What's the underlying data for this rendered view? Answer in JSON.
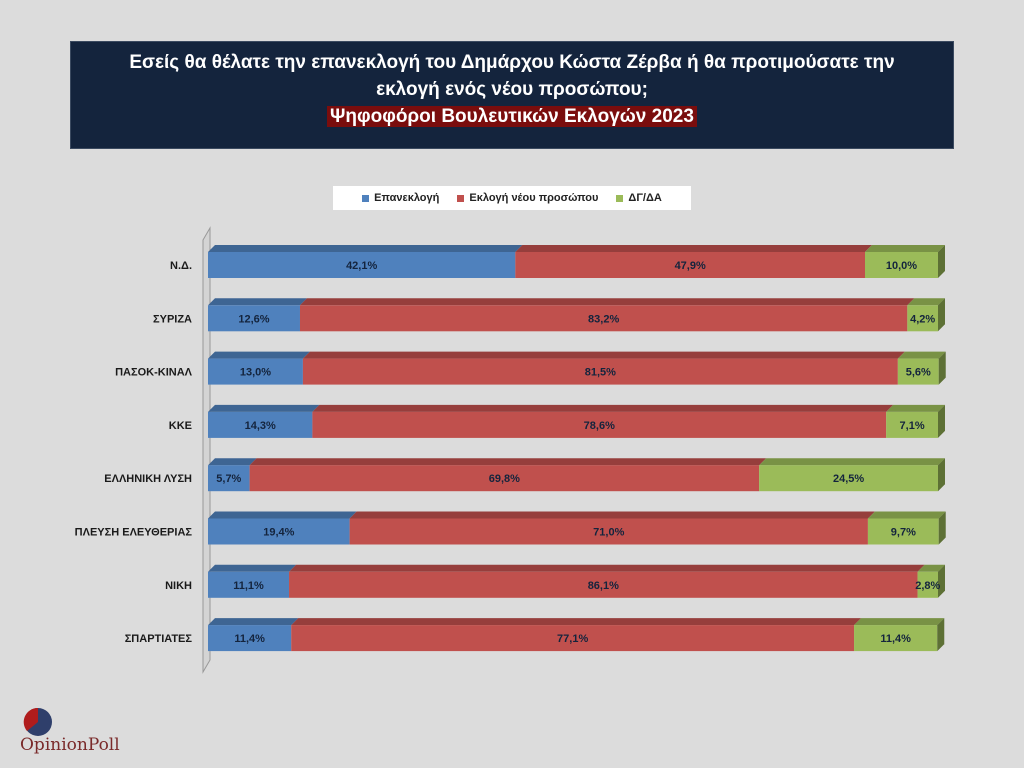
{
  "title": {
    "line1": "Εσείς θα θέλατε την επανεκλογή του Δημάρχου Κώστα Ζέρβα ή θα προτιμούσατε την",
    "line2": "εκλογή ενός νέου προσώπου;",
    "subtitle": "Ψηφοφόροι Βουλευτικών Εκλογών 2023"
  },
  "logo": {
    "text": "OpinionPoll"
  },
  "chart_data": {
    "type": "bar",
    "orientation": "horizontal-stacked-100",
    "categories": [
      "Ν.Δ.",
      "ΣΥΡΙΖΑ",
      "ΠΑΣΟΚ-ΚΙΝΑΛ",
      "ΚΚΕ",
      "ΕΛΛΗΝΙΚΗ ΛΥΣΗ",
      "ΠΛΕΥΣΗ ΕΛΕΥΘΕΡΙΑΣ",
      "ΝΙΚΗ",
      "ΣΠΑΡΤΙΑΤΕΣ"
    ],
    "series": [
      {
        "name": "Επανεκλογή",
        "color": "#4f81bd",
        "values": [
          42.1,
          12.6,
          13.0,
          14.3,
          5.7,
          19.4,
          11.1,
          11.4
        ],
        "labels": [
          "42,1%",
          "12,6%",
          "13,0%",
          "14,3%",
          "5,7%",
          "19,4%",
          "11,1%",
          "11,4%"
        ]
      },
      {
        "name": "Εκλογή νέου προσώπου",
        "color": "#c0504d",
        "values": [
          47.9,
          83.2,
          81.5,
          78.6,
          69.8,
          71.0,
          86.1,
          77.1
        ],
        "labels": [
          "47,9%",
          "83,2%",
          "81,5%",
          "78,6%",
          "69,8%",
          "71,0%",
          "86,1%",
          "77,1%"
        ]
      },
      {
        "name": "ΔΓ/ΔΑ",
        "color": "#9bbb59",
        "values": [
          10.0,
          4.2,
          5.6,
          7.1,
          24.5,
          9.7,
          2.8,
          11.4
        ],
        "labels": [
          "10,0%",
          "4,2%",
          "5,6%",
          "7,1%",
          "24,5%",
          "9,7%",
          "2,8%",
          "11,4%"
        ]
      }
    ],
    "legend_position": "top",
    "xlim": [
      0,
      100
    ],
    "grid": false
  }
}
